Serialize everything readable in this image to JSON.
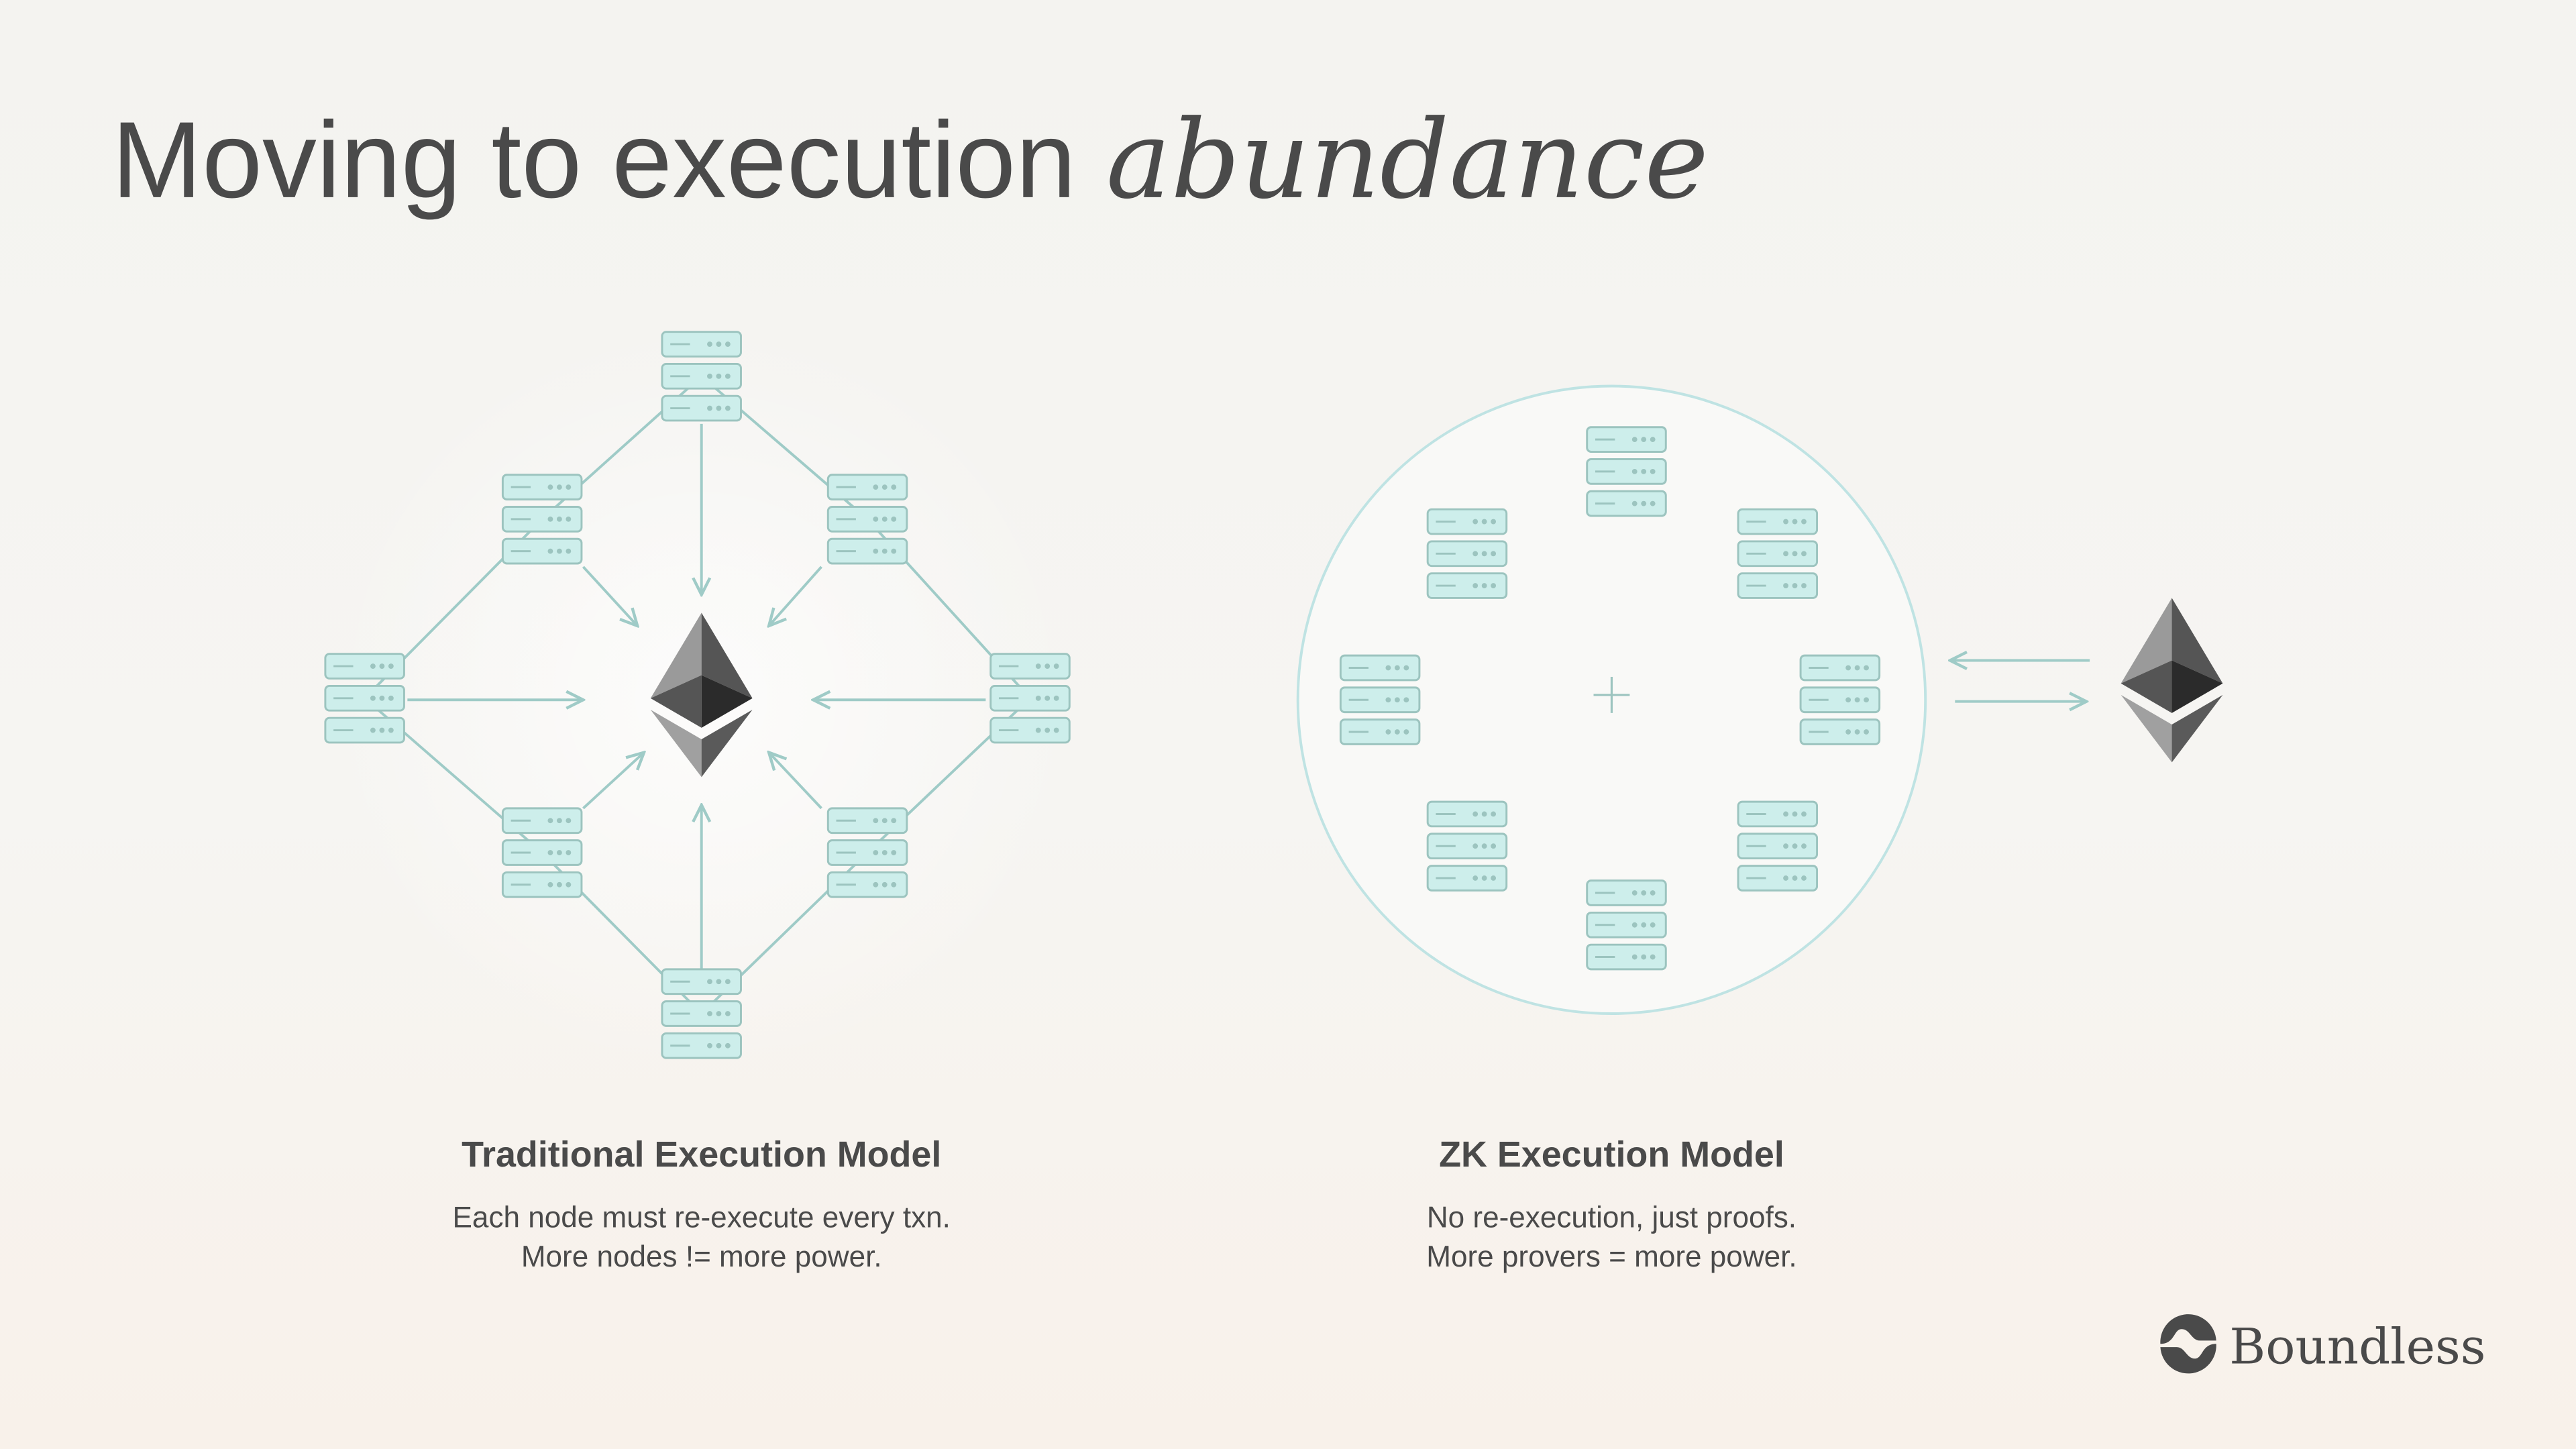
{
  "title": {
    "plain": "Moving to execution",
    "emphasis": "abundance"
  },
  "left_panel": {
    "heading": "Traditional Execution Model",
    "line1": "Each node must re-execute every txn.",
    "line2": "More nodes != more power.",
    "icons": [
      "server-stack-icon",
      "ethereum-icon"
    ]
  },
  "right_panel": {
    "heading": "ZK Execution Model",
    "line1": "No re-execution, just proofs.",
    "line2": "More provers = more power.",
    "icons": [
      "server-stack-icon",
      "plus-icon",
      "ethereum-icon"
    ]
  },
  "logo": {
    "text": "Boundless"
  },
  "colors": {
    "text": "#4a4a4a",
    "server_fill": "#cdeeeb",
    "server_stroke": "#9cc4bf",
    "line": "#9fcbc7",
    "circle": "#bfe3e3"
  }
}
